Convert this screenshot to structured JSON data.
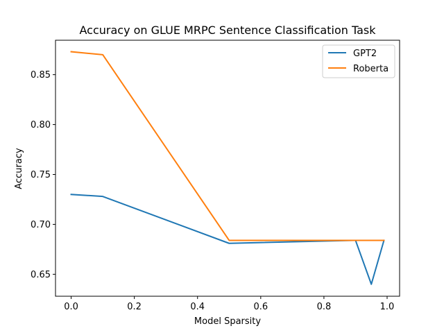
{
  "chart_data": {
    "type": "line",
    "title": "Accuracy on GLUE MRPC Sentence Classification Task",
    "xlabel": "Model Sparsity",
    "ylabel": "Accuracy",
    "x": [
      0.0,
      0.1,
      0.5,
      0.9,
      0.95,
      0.99
    ],
    "xlim": [
      -0.0495,
      1.0395
    ],
    "ylim": [
      0.628,
      0.8845
    ],
    "xticks": [
      0.0,
      0.2,
      0.4,
      0.6,
      0.8,
      1.0
    ],
    "xtick_labels": [
      "0.0",
      "0.2",
      "0.4",
      "0.6",
      "0.8",
      "1.0"
    ],
    "yticks": [
      0.65,
      0.7,
      0.75,
      0.8,
      0.85
    ],
    "ytick_labels": [
      "0.65",
      "0.70",
      "0.75",
      "0.80",
      "0.85"
    ],
    "grid": false,
    "legend_position": "top-right",
    "series": [
      {
        "name": "GPT2",
        "color": "#1f77b4",
        "values": [
          0.73,
          0.728,
          0.681,
          0.684,
          0.64,
          0.684
        ]
      },
      {
        "name": "Roberta",
        "color": "#ff7f0e",
        "values": [
          0.873,
          0.87,
          0.684,
          0.684,
          0.684,
          0.684
        ]
      }
    ]
  }
}
